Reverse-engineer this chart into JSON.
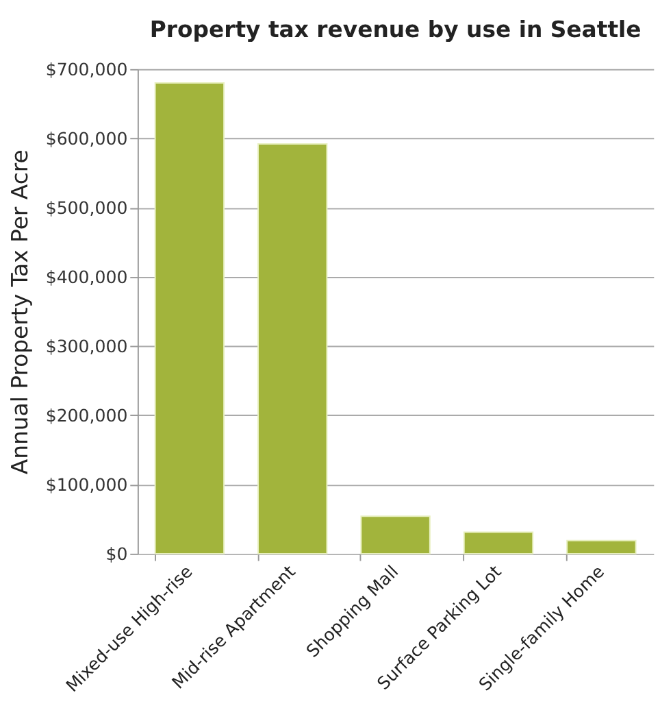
{
  "chart_data": {
    "type": "bar",
    "title": "Property tax revenue by use in Seattle",
    "ylabel": "Annual Property Tax Per Acre",
    "categories": [
      "Mixed-use High-rise",
      "Mid-rise Apartment",
      "Shopping Mall",
      "Surface Parking Lot",
      "Single-family Home"
    ],
    "values": [
      680000,
      592000,
      54000,
      31000,
      19000
    ],
    "color": "#a2b43c",
    "ylim": [
      0,
      700000
    ],
    "yticks": [
      {
        "value": 0,
        "label": "$0"
      },
      {
        "value": 100000,
        "label": "$100,000"
      },
      {
        "value": 200000,
        "label": "$200,000"
      },
      {
        "value": 300000,
        "label": "$300,000"
      },
      {
        "value": 400000,
        "label": "$400,000"
      },
      {
        "value": 500000,
        "label": "$500,000"
      },
      {
        "value": 600000,
        "label": "$600,000"
      },
      {
        "value": 700000,
        "label": "$700,000"
      }
    ],
    "grid": "y"
  }
}
